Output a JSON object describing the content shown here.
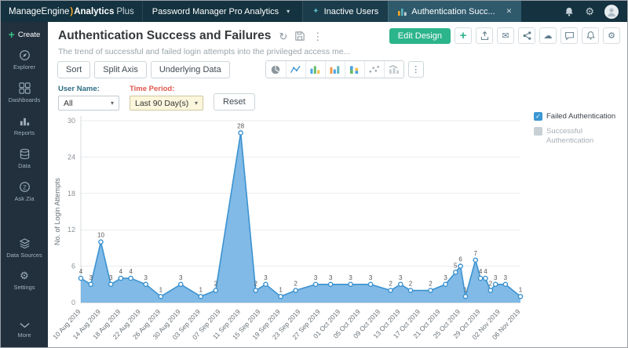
{
  "icons": {
    "gear": "⚙",
    "mail": "✉",
    "cloud": "☁",
    "kebab": "⋮",
    "refresh": "↻",
    "plus": "+",
    "close": "✕",
    "caret_down": "▾",
    "spark": "✦",
    "check": "✓"
  },
  "topbar": {
    "logo": {
      "part1": "ManageEngine",
      "paren": ")",
      "part2": "Analytics",
      "part3": "Plus"
    },
    "workspace_label": "Password Manager Pro Analytics",
    "tabs": [
      {
        "label": "Inactive Users"
      },
      {
        "label": "Authentication Succ..."
      }
    ]
  },
  "sidebar": {
    "create_label": "Create",
    "items": [
      {
        "label": "Explorer"
      },
      {
        "label": "Dashboards"
      },
      {
        "label": "Reports"
      },
      {
        "label": "Data"
      },
      {
        "label": "Ask Zia"
      },
      {
        "label": "Data Sources"
      },
      {
        "label": "Settings"
      },
      {
        "label": "More"
      }
    ]
  },
  "header": {
    "title": "Authentication Success and Failures",
    "subtitle": "The trend of successful and failed login attempts into the privileged access me...",
    "edit_design_label": "Edit Design"
  },
  "toolbar": {
    "sort_label": "Sort",
    "split_axis_label": "Split Axis",
    "underlying_data_label": "Underlying Data"
  },
  "filters": {
    "user_name_label": "User Name:",
    "user_name_value": "All",
    "time_period_label": "Time Period:",
    "time_period_value": "Last 90 Day(s)",
    "reset_label": "Reset"
  },
  "legend": [
    {
      "label": "Failed Authentication",
      "checked": true
    },
    {
      "label": "Successful Authentication",
      "checked": false
    }
  ],
  "colors": {
    "accent_green": "#2cb48b",
    "chart_line": "#3c92d0",
    "chart_fill": "#6fb1e2",
    "legend_checked": "#3b97d3",
    "grid": "#e9ecee",
    "axis": "#b9c0c6",
    "tick_text": "#8a9299",
    "point_label": "#555555"
  },
  "chart_data": {
    "type": "area",
    "title": "Authentication Success and Failures",
    "ylabel": "No. of Login Attempts",
    "ylim": [
      0,
      30
    ],
    "yticks": [
      0,
      6,
      12,
      18,
      24,
      30
    ],
    "x_tick_days": [
      0,
      4,
      8,
      12,
      16,
      20,
      24,
      28,
      32,
      36,
      40,
      44,
      48,
      52,
      56,
      60,
      64,
      68,
      72,
      76,
      80,
      84,
      88
    ],
    "x_tick_labels": [
      "10 Aug 2019",
      "14 Aug 2019",
      "18 Aug 2019",
      "22 Aug 2019",
      "26 Aug 2019",
      "30 Aug 2019",
      "03 Sep 2019",
      "07 Sep 2019",
      "11 Sep 2019",
      "15 Sep 2019",
      "19 Sep 2019",
      "23 Sep 2019",
      "27 Sep 2019",
      "01 Oct 2019",
      "05 Oct 2019",
      "09 Oct 2019",
      "13 Oct 2019",
      "17 Oct 2019",
      "21 Oct 2019",
      "25 Oct 2019",
      "29 Oct 2019",
      "02 Nov 2019",
      "06 Nov 2019"
    ],
    "legend_position": "top-right",
    "grid": true,
    "series": [
      {
        "name": "Failed Authentication",
        "points": [
          [
            0,
            4
          ],
          [
            2,
            3
          ],
          [
            4,
            10
          ],
          [
            6,
            3
          ],
          [
            8,
            4
          ],
          [
            10,
            4
          ],
          [
            13,
            3
          ],
          [
            16,
            1
          ],
          [
            20,
            3
          ],
          [
            24,
            1
          ],
          [
            27,
            2
          ],
          [
            32,
            28
          ],
          [
            35,
            2
          ],
          [
            37,
            3
          ],
          [
            40,
            1
          ],
          [
            43,
            2
          ],
          [
            47,
            3
          ],
          [
            50,
            3
          ],
          [
            54,
            3
          ],
          [
            58,
            3
          ],
          [
            62,
            2
          ],
          [
            64,
            3
          ],
          [
            66,
            2
          ],
          [
            70,
            2
          ],
          [
            73,
            3
          ],
          [
            75,
            5
          ],
          [
            76,
            6
          ],
          [
            77,
            1
          ],
          [
            79,
            7
          ],
          [
            80,
            4
          ],
          [
            81,
            4
          ],
          [
            82,
            2
          ],
          [
            83,
            3
          ],
          [
            85,
            3
          ],
          [
            88,
            1
          ]
        ]
      }
    ]
  }
}
